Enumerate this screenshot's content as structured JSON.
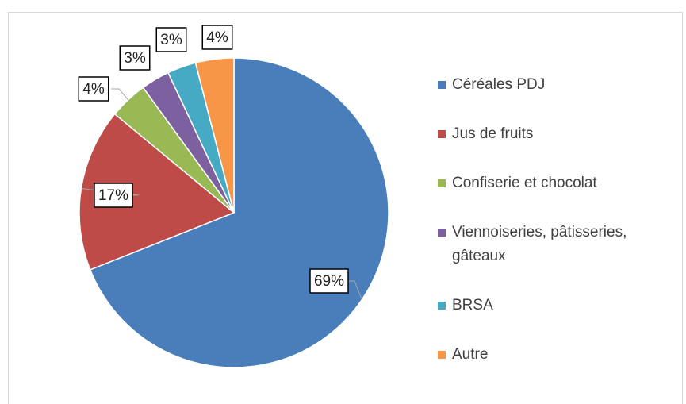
{
  "chart_data": {
    "type": "pie",
    "categories": [
      "Céréales PDJ",
      "Jus de fruits",
      "Confiserie et chocolat",
      "Viennoiseries, pâtisseries, gâteaux",
      "BRSA",
      "Autre"
    ],
    "values": [
      69,
      17,
      4,
      3,
      3,
      4
    ],
    "value_labels": [
      "69%",
      "17%",
      "4%",
      "3%",
      "3%",
      "4%"
    ],
    "colors": [
      "#4a7ebb",
      "#be4b48",
      "#98b954",
      "#7d60a0",
      "#46aac5",
      "#f79646"
    ],
    "legend": "right"
  }
}
